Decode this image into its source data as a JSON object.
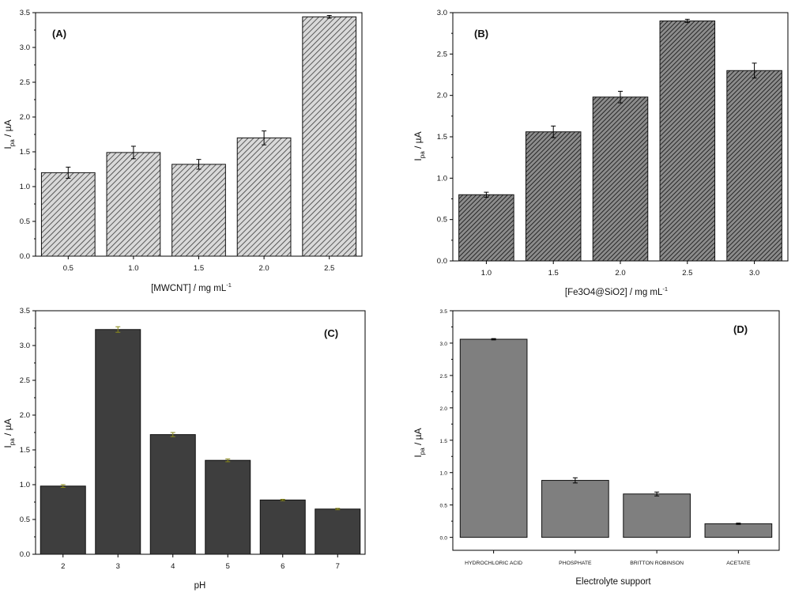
{
  "colors": {
    "axis": "#000000",
    "hatch_dark": "#1a1a1a",
    "bar_C": "#3e3e3e",
    "bar_D": "#7f7f7f",
    "err_C": "#8a8a1a"
  },
  "chart_data": [
    {
      "id": "A",
      "type": "bar",
      "title": "(A)",
      "categories": [
        "0.5",
        "1.0",
        "1.5",
        "2.0",
        "2.5"
      ],
      "values": [
        1.2,
        1.49,
        1.32,
        1.7,
        3.44
      ],
      "errors": [
        0.08,
        0.09,
        0.07,
        0.1,
        0.02
      ],
      "ylim": [
        0,
        3.5
      ],
      "yticks": [
        "0.0",
        "0.5",
        "1.0",
        "1.5",
        "2.0",
        "2.5",
        "3.0",
        "3.5"
      ],
      "xlabel": "[MWCNT]  / mg mL",
      "xlabel_sup": "-1",
      "ylabel": "I",
      "ylabel_sub": "pa",
      "ylabel_tail": " / µA",
      "fill": "hatch-light",
      "title_pos": "top-left"
    },
    {
      "id": "B",
      "type": "bar",
      "title": "(B)",
      "categories": [
        "1.0",
        "1.5",
        "2.0",
        "2.5",
        "3.0"
      ],
      "values": [
        0.8,
        1.56,
        1.98,
        2.9,
        2.3
      ],
      "errors": [
        0.03,
        0.07,
        0.07,
        0.02,
        0.09
      ],
      "ylim": [
        0,
        3.0
      ],
      "yticks": [
        "0.0",
        "0.5",
        "1.0",
        "1.5",
        "2.0",
        "2.5",
        "3.0"
      ],
      "xlabel": "[Fe3O4@SiO2]  / mg mL",
      "xlabel_sup": "-1",
      "ylabel": "I",
      "ylabel_sub": "pa",
      "ylabel_tail": " / µA",
      "fill": "hatch-dark",
      "title_pos": "top-left"
    },
    {
      "id": "C",
      "type": "bar",
      "title": "(C)",
      "categories": [
        "2",
        "3",
        "4",
        "5",
        "6",
        "7"
      ],
      "values": [
        0.98,
        3.23,
        1.72,
        1.35,
        0.78,
        0.65
      ],
      "errors": [
        0.02,
        0.04,
        0.03,
        0.02,
        0.01,
        0.01
      ],
      "ylim": [
        0,
        3.5
      ],
      "yticks": [
        "0.0",
        "0.5",
        "1.0",
        "1.5",
        "2.0",
        "2.5",
        "3.0",
        "3.5"
      ],
      "xlabel": "pH",
      "xlabel_sup": "",
      "ylabel": "I",
      "ylabel_sub": "pa",
      "ylabel_tail": " / µA",
      "fill": "solid-dark",
      "title_pos": "top-right"
    },
    {
      "id": "D",
      "type": "bar",
      "title": "(D)",
      "categories": [
        "HYDROCHLORIC ACID",
        "PHOSPHATE",
        "BRITTON ROBINSON",
        "ACETATE"
      ],
      "values": [
        3.06,
        0.88,
        0.67,
        0.21
      ],
      "errors": [
        0.01,
        0.04,
        0.03,
        0.01
      ],
      "ylim": [
        -0.2,
        3.5
      ],
      "yticks": [
        "0.0",
        "0.5",
        "1.0",
        "1.5",
        "2.0",
        "2.5",
        "3.0",
        "3.5"
      ],
      "xlabel": "Electrolyte support",
      "xlabel_sup": "",
      "ylabel": "I",
      "ylabel_sub": "pa",
      "ylabel_tail": " / µA",
      "fill": "solid-gray",
      "title_pos": "top-right"
    }
  ]
}
